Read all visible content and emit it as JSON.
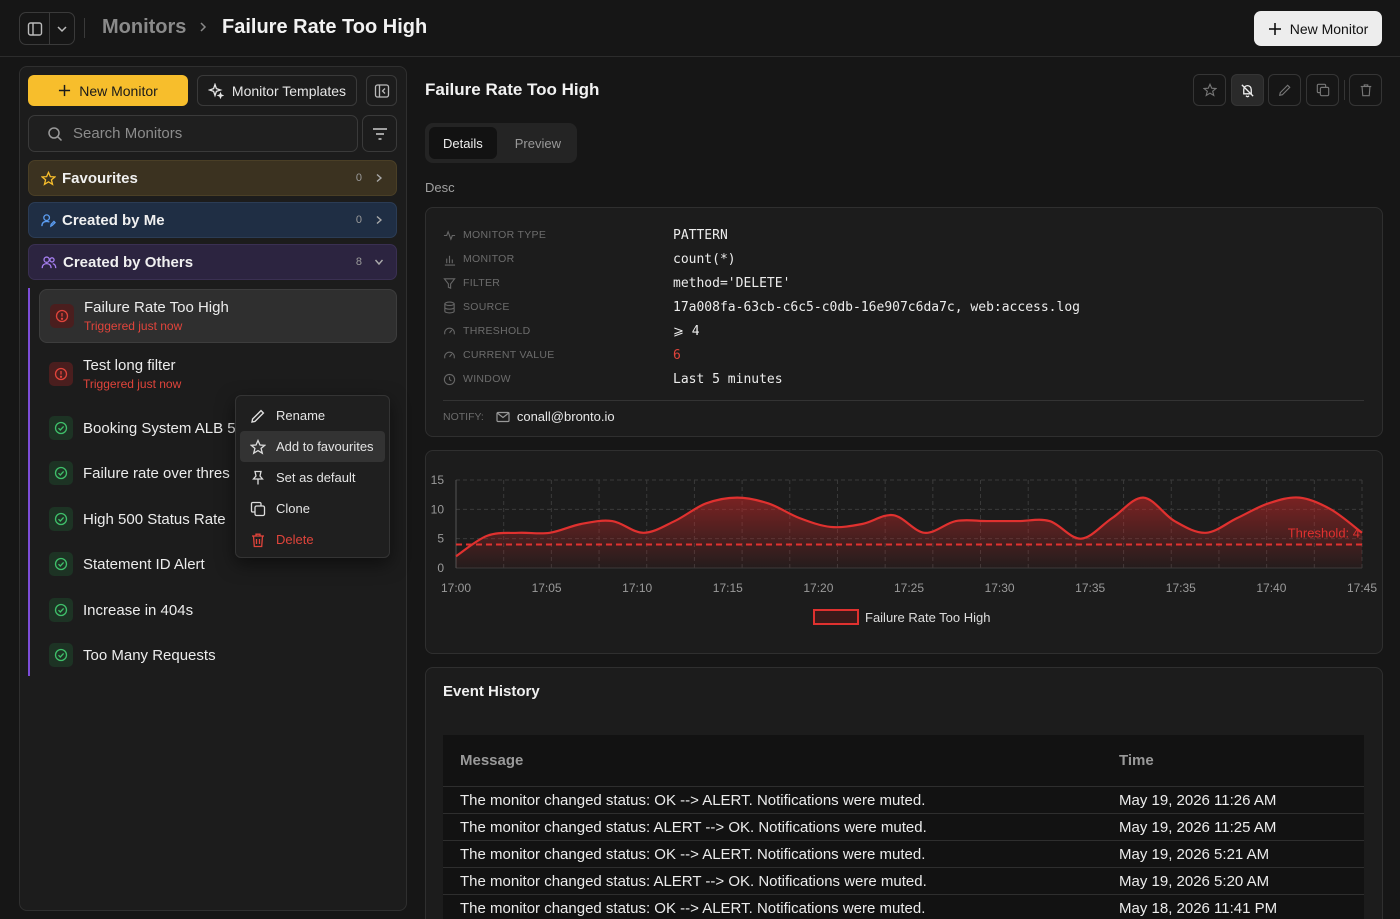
{
  "breadcrumb": {
    "root": "Monitors",
    "current": "Failure Rate Too High"
  },
  "top_bar": {
    "new_monitor_label": "New Monitor"
  },
  "sidebar": {
    "new_monitor_label": "New Monitor",
    "templates_label": "Monitor Templates",
    "search_placeholder": "Search Monitors",
    "groups": [
      {
        "label": "Favourites",
        "count": "0"
      },
      {
        "label": "Created by Me",
        "count": "0"
      },
      {
        "label": "Created by Others",
        "count": "8"
      }
    ],
    "monitors": [
      {
        "name": "Failure Rate Too High",
        "status": "alert",
        "sub": "Triggered just now"
      },
      {
        "name": "Test long filter",
        "status": "alert",
        "sub": "Triggered just now"
      },
      {
        "name": "Booking System ALB 5",
        "status": "ok",
        "sub": ""
      },
      {
        "name": "Failure rate over thres",
        "status": "ok",
        "sub": ""
      },
      {
        "name": "High 500 Status Rate",
        "status": "ok",
        "sub": ""
      },
      {
        "name": "Statement ID Alert",
        "status": "ok",
        "sub": ""
      },
      {
        "name": "Increase in 404s",
        "status": "ok",
        "sub": ""
      },
      {
        "name": "Too Many Requests",
        "status": "ok",
        "sub": ""
      }
    ]
  },
  "context_menu": {
    "items": [
      "Rename",
      "Add to favourites",
      "Set as default",
      "Clone",
      "Delete"
    ]
  },
  "main": {
    "title": "Failure Rate Too High",
    "tabs": [
      "Details",
      "Preview"
    ],
    "description": "Desc",
    "details": [
      {
        "key": "MONITOR TYPE",
        "value": "PATTERN"
      },
      {
        "key": "MONITOR",
        "value": "count(*)"
      },
      {
        "key": "FILTER",
        "value": "method='DELETE'"
      },
      {
        "key": "SOURCE",
        "value": "17a008fa-63cb-c6c5-c0db-16e907c6da7c, web:access.log"
      },
      {
        "key": "THRESHOLD",
        "value": "⩾ 4"
      },
      {
        "key": "CURRENT VALUE",
        "value": "6"
      },
      {
        "key": "WINDOW",
        "value": "Last 5 minutes"
      }
    ],
    "notify_label": "NOTIFY:",
    "notify_email": "conall@bronto.io"
  },
  "chart_data": {
    "type": "area",
    "x_tick_labels": [
      "17:00",
      "17:05",
      "17:10",
      "17:15",
      "17:20",
      "17:25",
      "17:30",
      "17:35",
      "17:35",
      "17:40",
      "17:45"
    ],
    "y_ticks": [
      0,
      5,
      10,
      15
    ],
    "ylim": [
      0,
      15
    ],
    "series": [
      {
        "name": "Failure Rate Too High",
        "color": "#e0312f",
        "values": [
          2,
          5.5,
          6,
          6,
          7.5,
          8,
          6,
          8,
          11,
          12,
          11,
          8.5,
          7,
          7.5,
          9,
          6,
          8,
          8,
          8,
          8,
          5,
          8.5,
          12,
          8,
          6,
          8.5,
          11,
          12,
          10,
          6
        ]
      }
    ],
    "threshold": {
      "value": 4,
      "label": "Threshold: 4"
    },
    "legend": "bottom-center",
    "grid": true
  },
  "events": {
    "title": "Event History",
    "columns": [
      "Message",
      "Time"
    ],
    "rows": [
      {
        "message": "The monitor changed status: OK --> ALERT. Notifications were muted.",
        "time": "May 19, 2026 11:26 AM"
      },
      {
        "message": "The monitor changed status: ALERT --> OK. Notifications were muted.",
        "time": "May 19, 2026 11:25 AM"
      },
      {
        "message": "The monitor changed status: OK --> ALERT. Notifications were muted.",
        "time": "May 19, 2026 5:21 AM"
      },
      {
        "message": "The monitor changed status: ALERT --> OK. Notifications were muted.",
        "time": "May 19, 2026 5:20 AM"
      },
      {
        "message": "The monitor changed status: OK --> ALERT. Notifications were muted.",
        "time": "May 18, 2026 11:41 PM"
      }
    ]
  },
  "colors": {
    "accent_yellow": "#f7be2c",
    "alert_red": "#e0443b",
    "ok_green": "#3fbf6a",
    "tree_purple": "#7c4dd8"
  }
}
